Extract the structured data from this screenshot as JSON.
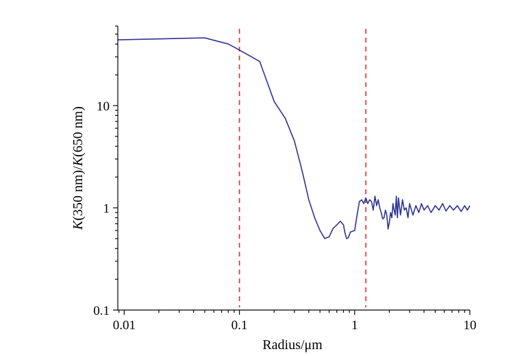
{
  "chart_data": {
    "type": "line",
    "xlabel": "Radius/μm",
    "ylabel_parts": [
      "K",
      "(350 nm)/",
      "K",
      "(650 nm)"
    ],
    "xscale": "log",
    "yscale": "log",
    "xlim": [
      0.0088,
      10
    ],
    "ylim": [
      0.1,
      60
    ],
    "x_ticks": [
      0.01,
      0.1,
      1,
      10
    ],
    "x_tick_labels": [
      "0.01",
      "0.1",
      "1",
      "10"
    ],
    "y_ticks": [
      0.1,
      1,
      10
    ],
    "y_tick_labels": [
      "0.1",
      "1",
      "10"
    ],
    "grid": false,
    "colors": {
      "series": "#2e3192",
      "reference": "#e8262d",
      "axis": "#000000"
    },
    "reference_lines_x": [
      0.1,
      1.25
    ],
    "series": [
      {
        "x": [
          0.0088,
          0.05,
          0.08,
          0.1,
          0.15,
          0.2,
          0.25,
          0.3,
          0.35,
          0.4,
          0.45,
          0.5,
          0.55,
          0.6,
          0.65,
          0.7,
          0.75,
          0.8,
          0.82,
          0.85,
          0.88,
          0.92,
          1.0,
          1.05,
          1.1,
          1.15,
          1.2,
          1.25,
          1.3,
          1.35,
          1.4,
          1.45,
          1.5,
          1.55,
          1.6,
          1.65,
          1.7,
          1.75,
          1.8,
          1.85,
          1.9,
          1.95,
          2.0,
          2.05,
          2.1,
          2.15,
          2.2,
          2.25,
          2.3,
          2.35,
          2.4,
          2.5,
          2.6,
          2.7,
          2.8,
          2.9,
          3.0,
          3.2,
          3.4,
          3.6,
          3.8,
          4.0,
          4.3,
          4.6,
          5.0,
          5.4,
          5.8,
          6.2,
          6.7,
          7.2,
          7.8,
          8.4,
          9.0,
          9.5,
          10.0
        ],
        "values": [
          44,
          46,
          40,
          35,
          27,
          11,
          7.5,
          4.5,
          2.3,
          1.2,
          0.8,
          0.6,
          0.5,
          0.52,
          0.63,
          0.68,
          0.74,
          0.68,
          0.58,
          0.5,
          0.51,
          0.58,
          0.6,
          0.85,
          1.15,
          1.2,
          1.1,
          1.25,
          1.1,
          1.2,
          1.15,
          0.95,
          1.3,
          1.05,
          1.2,
          1.0,
          0.9,
          0.78,
          0.8,
          0.95,
          0.85,
          0.62,
          0.72,
          0.9,
          0.8,
          1.1,
          0.95,
          0.85,
          1.3,
          0.8,
          1.25,
          0.85,
          1.2,
          0.95,
          1.0,
          0.8,
          1.1,
          0.85,
          1.05,
          0.9,
          1.1,
          0.95,
          1.05,
          0.9,
          1.05,
          0.95,
          1.1,
          0.93,
          1.05,
          0.95,
          1.05,
          0.92,
          1.05,
          0.95,
          1.05
        ]
      }
    ]
  }
}
